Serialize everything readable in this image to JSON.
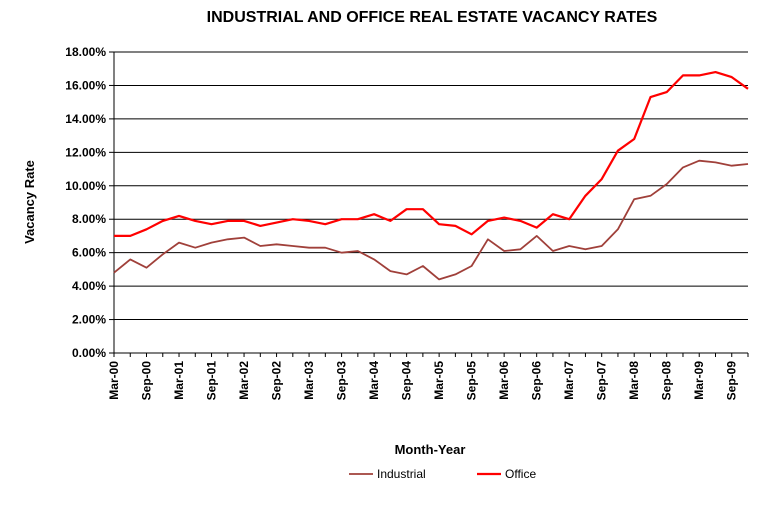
{
  "chart_data": {
    "type": "line",
    "title": "INDUSTRIAL AND OFFICE REAL ESTATE VACANCY RATES",
    "xlabel": "Month-Year",
    "ylabel": "Vacancy Rate",
    "ylim": [
      0,
      18
    ],
    "y_ticks": [
      "0.00%",
      "2.00%",
      "4.00%",
      "6.00%",
      "8.00%",
      "10.00%",
      "12.00%",
      "14.00%",
      "16.00%",
      "18.00%"
    ],
    "grid": "horizontal",
    "legend": "bottom",
    "x": [
      "Mar-00",
      "Jun-00",
      "Sep-00",
      "Dec-00",
      "Mar-01",
      "Jun-01",
      "Sep-01",
      "Dec-01",
      "Mar-02",
      "Jun-02",
      "Sep-02",
      "Dec-02",
      "Mar-03",
      "Jun-03",
      "Sep-03",
      "Dec-03",
      "Mar-04",
      "Jun-04",
      "Sep-04",
      "Dec-04",
      "Mar-05",
      "Jun-05",
      "Sep-05",
      "Dec-05",
      "Mar-06",
      "Jun-06",
      "Sep-06",
      "Dec-06",
      "Mar-07",
      "Jun-07",
      "Sep-07",
      "Dec-07",
      "Mar-08",
      "Jun-08",
      "Sep-08",
      "Dec-08",
      "Mar-09",
      "Jun-09",
      "Sep-09",
      "Dec-09"
    ],
    "x_tick_labels": [
      "Mar-00",
      "Sep-00",
      "Mar-01",
      "Sep-01",
      "Mar-02",
      "Sep-02",
      "Mar-03",
      "Sep-03",
      "Mar-04",
      "Sep-04",
      "Mar-05",
      "Sep-05",
      "Mar-06",
      "Sep-06",
      "Mar-07",
      "Sep-07",
      "Mar-08",
      "Sep-08",
      "Mar-09",
      "Sep-09"
    ],
    "series": [
      {
        "name": "Industrial",
        "color": "#a0403a",
        "values": [
          4.8,
          5.6,
          5.1,
          5.9,
          6.6,
          6.3,
          6.6,
          6.8,
          6.9,
          6.4,
          6.5,
          6.4,
          6.3,
          6.3,
          6.0,
          6.1,
          5.6,
          4.9,
          4.7,
          5.2,
          4.4,
          4.7,
          5.2,
          6.8,
          6.1,
          6.2,
          7.0,
          6.1,
          6.4,
          6.2,
          6.4,
          7.4,
          9.2,
          9.4,
          10.1,
          11.1,
          11.5,
          11.4,
          11.2,
          11.3
        ]
      },
      {
        "name": "Office",
        "color": "#ff0000",
        "values": [
          7.0,
          7.0,
          7.4,
          7.9,
          8.2,
          7.9,
          7.7,
          7.9,
          7.9,
          7.6,
          7.8,
          8.0,
          7.9,
          7.7,
          8.0,
          8.0,
          8.3,
          7.9,
          8.6,
          8.6,
          7.7,
          7.6,
          7.1,
          7.9,
          8.1,
          7.9,
          7.5,
          8.3,
          8.0,
          9.4,
          10.4,
          12.1,
          12.8,
          15.3,
          15.6,
          16.6,
          16.6,
          16.8,
          16.5,
          15.8
        ]
      }
    ]
  }
}
